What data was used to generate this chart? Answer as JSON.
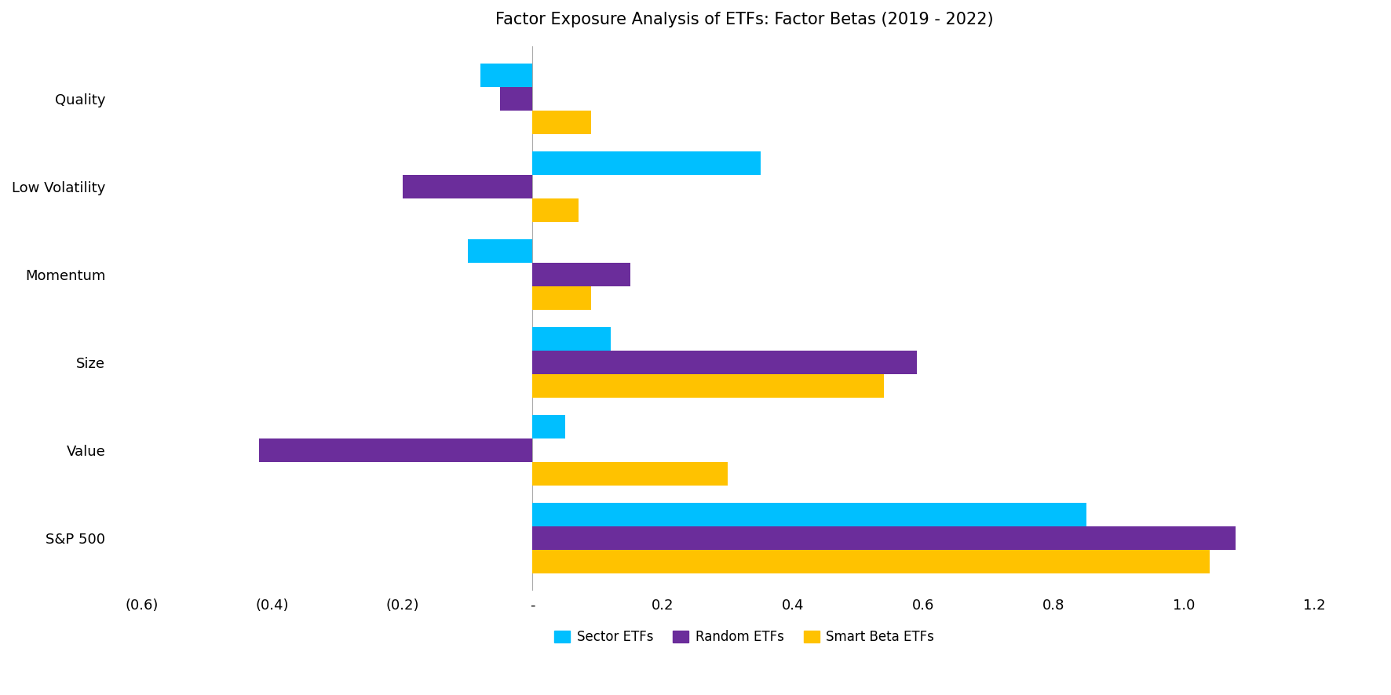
{
  "title": "Factor Exposure Analysis of ETFs: Factor Betas (2019 - 2022)",
  "categories": [
    "S&P 500",
    "Value",
    "Size",
    "Momentum",
    "Low Volatility",
    "Quality"
  ],
  "series": {
    "Sector ETFs": {
      "color": "#00BFFF",
      "values": [
        0.85,
        0.05,
        0.12,
        -0.1,
        0.35,
        -0.08
      ]
    },
    "Random ETFs": {
      "color": "#6B2D9B",
      "values": [
        1.08,
        -0.42,
        0.59,
        0.15,
        -0.2,
        -0.05
      ]
    },
    "Smart Beta ETFs": {
      "color": "#FFC200",
      "values": [
        1.04,
        0.3,
        0.54,
        0.09,
        0.07,
        0.09
      ]
    }
  },
  "xlim": [
    -0.65,
    1.3
  ],
  "xticks": [
    -0.6,
    -0.4,
    -0.2,
    0.0,
    0.2,
    0.4,
    0.6,
    0.8,
    1.0,
    1.2
  ],
  "xticklabels": [
    "(0.6)",
    "(0.4)",
    "(0.2)",
    "-",
    "0.2",
    "0.4",
    "0.6",
    "0.8",
    "1.0",
    "1.2"
  ],
  "bar_height": 0.27,
  "title_fontsize": 15,
  "tick_fontsize": 13,
  "label_fontsize": 13,
  "legend_fontsize": 12,
  "background_color": "#ffffff"
}
